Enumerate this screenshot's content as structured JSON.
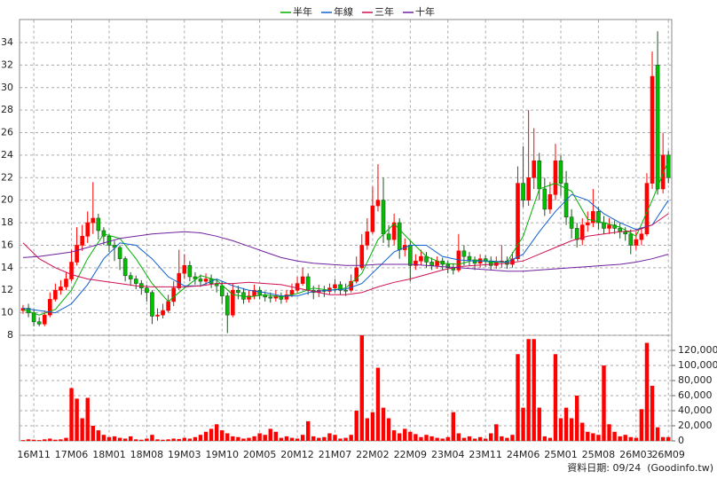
{
  "chart_data": {
    "type": "candlestick",
    "categories": [
      null,
      null,
      "16M11",
      null,
      null,
      null,
      null,
      null,
      null,
      "17M06",
      null,
      null,
      null,
      null,
      null,
      null,
      "18M01",
      null,
      null,
      null,
      null,
      null,
      null,
      "18M08",
      null,
      null,
      null,
      null,
      null,
      null,
      "19M03",
      null,
      null,
      null,
      null,
      null,
      null,
      "19M10",
      null,
      null,
      null,
      null,
      null,
      null,
      "20M05",
      null,
      null,
      null,
      null,
      null,
      null,
      "20M12",
      null,
      null,
      null,
      null,
      null,
      null,
      "21M07",
      null,
      null,
      null,
      null,
      null,
      null,
      "22M02",
      null,
      null,
      null,
      null,
      null,
      null,
      "22M09",
      null,
      null,
      null,
      null,
      null,
      null,
      "23M04",
      null,
      null,
      null,
      null,
      null,
      null,
      "23M11",
      null,
      null,
      null,
      null,
      null,
      null,
      "24M06",
      null,
      null,
      null,
      null,
      null,
      null,
      "25M01",
      null,
      null,
      null,
      null,
      null,
      null,
      "25M08",
      null,
      null,
      null,
      null,
      null,
      null,
      "26M03",
      null,
      null,
      null,
      null,
      null,
      "26M09"
    ],
    "open": [
      10.2,
      10.4,
      10.0,
      9.2,
      9.0,
      9.8,
      11.2,
      12.0,
      12.3,
      13.0,
      14.5,
      16.0,
      16.8,
      18.0,
      18.4,
      17.3,
      16.8,
      16.0,
      15.8,
      14.8,
      13.3,
      13.0,
      12.6,
      12.2,
      11.8,
      9.7,
      9.8,
      10.2,
      11.0,
      12.2,
      13.5,
      14.2,
      13.2,
      13.0,
      12.8,
      13.0,
      12.6,
      12.4,
      11.5,
      9.8,
      12.0,
      11.8,
      11.2,
      11.5,
      12.0,
      11.6,
      11.4,
      11.3,
      11.5,
      11.2,
      11.6,
      12.0,
      12.6,
      13.2,
      12.0,
      11.8,
      12.0,
      11.9,
      12.2,
      12.5,
      12.0,
      12.0,
      12.8,
      14.0,
      16.0,
      17.2,
      19.5,
      20.0,
      17.0,
      16.5,
      18.0,
      15.6,
      16.0,
      14.2,
      14.6,
      15.0,
      14.5,
      14.2,
      14.6,
      14.3,
      14.0,
      13.8,
      15.5,
      15.0,
      14.7,
      14.4,
      14.8,
      14.6,
      14.2,
      14.5,
      14.6,
      14.3,
      14.8,
      21.5,
      20.0,
      22.0,
      23.5,
      21.0,
      19.2,
      20.5,
      23.5,
      21.5,
      18.5,
      17.5,
      16.5,
      17.8,
      18.0,
      19.0,
      18.0,
      17.5,
      17.8,
      17.5,
      17.2,
      17.0,
      16.0,
      16.5,
      17.0,
      21.5,
      32.0,
      21.0,
      24.0
    ],
    "high": [
      10.7,
      10.8,
      10.3,
      9.6,
      10.2,
      11.8,
      12.6,
      12.9,
      13.6,
      15.6,
      17.6,
      17.8,
      19.0,
      21.6,
      18.8,
      17.6,
      17.0,
      16.4,
      16.0,
      15.0,
      13.6,
      13.3,
      12.9,
      12.5,
      12.0,
      10.4,
      10.8,
      11.6,
      12.8,
      15.6,
      15.2,
      14.6,
      13.6,
      13.4,
      13.5,
      13.4,
      13.0,
      12.8,
      11.8,
      12.6,
      12.4,
      12.2,
      12.0,
      12.5,
      12.3,
      11.9,
      11.8,
      12.0,
      11.8,
      12.0,
      12.6,
      13.2,
      14.0,
      13.5,
      12.4,
      12.5,
      12.4,
      12.6,
      13.0,
      12.8,
      12.6,
      13.4,
      15.0,
      17.0,
      18.4,
      21.2,
      23.2,
      22.0,
      17.8,
      18.8,
      18.4,
      16.6,
      16.4,
      15.2,
      15.6,
      15.4,
      14.9,
      15.0,
      14.9,
      14.6,
      14.4,
      17.0,
      16.0,
      15.4,
      15.0,
      15.2,
      15.1,
      15.0,
      15.0,
      16.0,
      15.0,
      15.4,
      23.0,
      24.8,
      28.0,
      26.4,
      24.2,
      22.0,
      21.6,
      25.0,
      24.0,
      22.6,
      19.2,
      18.0,
      18.4,
      19.0,
      21.0,
      19.4,
      18.6,
      18.4,
      18.2,
      18.0,
      17.6,
      17.4,
      17.2,
      17.6,
      22.4,
      33.2,
      35.0,
      26.0,
      24.4
    ],
    "low": [
      9.9,
      9.6,
      8.8,
      8.8,
      8.8,
      9.6,
      11.0,
      11.6,
      12.0,
      12.8,
      14.2,
      15.5,
      16.2,
      17.0,
      16.5,
      16.0,
      15.4,
      14.6,
      13.8,
      12.8,
      12.4,
      12.1,
      11.6,
      11.0,
      9.0,
      9.3,
      9.5,
      10.0,
      10.6,
      12.0,
      13.0,
      12.8,
      12.5,
      12.3,
      12.4,
      12.2,
      11.8,
      10.8,
      8.2,
      9.6,
      11.2,
      10.8,
      10.9,
      11.2,
      11.2,
      11.0,
      10.9,
      11.0,
      10.8,
      10.9,
      11.4,
      11.8,
      12.4,
      11.6,
      11.2,
      11.4,
      11.4,
      11.6,
      11.8,
      11.6,
      11.5,
      11.8,
      12.6,
      13.8,
      15.6,
      17.0,
      19.0,
      16.2,
      15.8,
      16.0,
      14.8,
      15.0,
      12.8,
      13.8,
      14.2,
      14.0,
      13.8,
      13.9,
      13.8,
      13.5,
      13.4,
      13.6,
      14.2,
      14.2,
      13.8,
      14.0,
      14.1,
      13.8,
      13.9,
      14.0,
      13.9,
      14.0,
      14.6,
      19.4,
      19.5,
      21.0,
      20.0,
      18.6,
      18.8,
      20.0,
      20.4,
      17.8,
      16.6,
      15.8,
      16.0,
      17.2,
      17.6,
      17.4,
      17.0,
      17.0,
      17.0,
      16.6,
      16.4,
      15.2,
      15.6,
      16.0,
      16.8,
      21.0,
      20.5,
      20.6,
      21.5
    ],
    "close": [
      10.4,
      10.0,
      9.2,
      9.0,
      9.8,
      11.2,
      12.0,
      12.3,
      13.0,
      14.5,
      16.0,
      16.8,
      18.0,
      18.4,
      17.3,
      16.8,
      16.0,
      15.8,
      14.8,
      13.3,
      13.0,
      12.6,
      12.2,
      11.8,
      9.7,
      9.8,
      10.2,
      11.0,
      12.2,
      13.5,
      14.2,
      13.2,
      13.0,
      12.8,
      13.0,
      12.6,
      12.4,
      11.5,
      9.8,
      12.0,
      11.8,
      11.2,
      11.5,
      12.0,
      11.6,
      11.4,
      11.3,
      11.5,
      11.2,
      11.6,
      12.0,
      12.6,
      13.2,
      12.0,
      11.8,
      12.0,
      11.9,
      12.2,
      12.5,
      12.0,
      12.0,
      12.8,
      14.0,
      16.0,
      17.2,
      19.5,
      20.0,
      17.0,
      16.5,
      18.0,
      15.6,
      16.0,
      14.2,
      14.6,
      15.0,
      14.5,
      14.2,
      14.6,
      14.3,
      14.0,
      13.8,
      15.5,
      15.0,
      14.7,
      14.4,
      14.8,
      14.6,
      14.2,
      14.5,
      14.6,
      14.3,
      14.8,
      21.5,
      20.0,
      22.0,
      23.5,
      21.0,
      19.2,
      20.5,
      23.5,
      21.5,
      18.5,
      17.5,
      16.5,
      17.8,
      18.0,
      19.0,
      18.0,
      17.5,
      17.8,
      17.5,
      17.2,
      17.0,
      16.0,
      16.5,
      17.0,
      21.5,
      31.0,
      21.0,
      24.0,
      22.0
    ],
    "up_color": "#ff0000",
    "down_color": "#00c000",
    "ylim": [
      8,
      36
    ],
    "yticks": [
      8,
      10,
      12,
      14,
      16,
      18,
      20,
      22,
      24,
      26,
      28,
      30,
      32,
      34
    ],
    "grid": true,
    "volume": {
      "color": "#ff0000",
      "values": [
        1000,
        2000,
        1500,
        1000,
        2000,
        3000,
        1500,
        2000,
        4000,
        70000,
        56000,
        30000,
        57000,
        20000,
        14000,
        8000,
        5000,
        6000,
        4000,
        3000,
        6000,
        2000,
        1500,
        3000,
        8000,
        2000,
        1500,
        2000,
        3000,
        2500,
        4000,
        3000,
        5000,
        8000,
        12000,
        16000,
        22000,
        14000,
        10000,
        6000,
        5000,
        3000,
        4000,
        6000,
        10000,
        8000,
        16000,
        12000,
        4000,
        6000,
        4000,
        3000,
        8000,
        26000,
        6000,
        4000,
        5000,
        10000,
        8000,
        3000,
        4000,
        8000,
        40000,
        140000,
        30000,
        38000,
        97000,
        44000,
        30000,
        14000,
        10000,
        16000,
        12000,
        9000,
        5000,
        8000,
        6000,
        4000,
        3000,
        5000,
        38000,
        10000,
        4000,
        6000,
        3000,
        5000,
        3000,
        10000,
        22000,
        6000,
        4000,
        8000,
        115000,
        44000,
        135000,
        135000,
        44000,
        6000,
        4000,
        115000,
        30000,
        44000,
        30000,
        60000,
        24000,
        12000,
        10000,
        8000,
        100000,
        22000,
        12000,
        6000,
        8000,
        5000,
        4000,
        42000,
        130000,
        73000,
        18000,
        5000,
        5000
      ],
      "ylim": [
        0,
        140000
      ],
      "yticks": [
        0,
        {
          "value": 20000,
          "label": "20,000"
        },
        {
          "value": 40000,
          "label": "40,000"
        },
        {
          "value": 60000,
          "label": "60,000"
        },
        {
          "value": 80000,
          "label": "80,000"
        },
        {
          "value": 100000,
          "label": "100,000"
        },
        {
          "value": 120000,
          "label": "120,000"
        }
      ]
    },
    "lines": [
      {
        "name": "半年",
        "color": "#00b000",
        "x": [
          0,
          3,
          6,
          9,
          12,
          15,
          18,
          21,
          24,
          27,
          30,
          33,
          36,
          39,
          42,
          45,
          48,
          51,
          54,
          57,
          60,
          63,
          66,
          69,
          72,
          75,
          78,
          81,
          84,
          87,
          90,
          93,
          96,
          99,
          102,
          105,
          108,
          111,
          114,
          117,
          120
        ],
        "values": [
          10.3,
          9.8,
          10.3,
          12.0,
          14.8,
          17.0,
          16.6,
          14.8,
          12.6,
          11.0,
          12.2,
          13.3,
          12.9,
          11.6,
          11.4,
          11.6,
          11.4,
          11.7,
          12.2,
          12.0,
          12.2,
          13.5,
          16.5,
          17.9,
          16.4,
          15.0,
          14.4,
          14.3,
          14.7,
          14.5,
          14.5,
          16.8,
          21.0,
          21.5,
          20.8,
          18.3,
          18.0,
          17.6,
          16.8,
          20.0,
          23.5
        ]
      },
      {
        "name": "年線",
        "color": "#1060d0",
        "x": [
          0,
          3,
          6,
          9,
          12,
          15,
          18,
          21,
          24,
          27,
          30,
          33,
          36,
          39,
          42,
          45,
          48,
          51,
          54,
          57,
          60,
          63,
          66,
          69,
          72,
          75,
          78,
          81,
          84,
          87,
          90,
          93,
          96,
          99,
          102,
          105,
          108,
          111,
          114,
          117,
          120
        ],
        "values": [
          10.4,
          10.2,
          10.0,
          10.8,
          12.5,
          14.8,
          16.2,
          16.0,
          14.8,
          13.2,
          12.4,
          12.4,
          13.0,
          12.4,
          12.0,
          11.8,
          11.5,
          11.5,
          11.9,
          12.0,
          12.1,
          12.6,
          14.0,
          15.4,
          16.0,
          16.0,
          15.0,
          14.7,
          14.6,
          14.6,
          14.5,
          15.2,
          17.2,
          19.0,
          20.5,
          20.0,
          18.8,
          18.0,
          17.4,
          17.8,
          20.0
        ]
      },
      {
        "name": "三年",
        "color": "#d01050",
        "x": [
          0,
          3,
          6,
          9,
          12,
          15,
          18,
          21,
          24,
          27,
          30,
          33,
          36,
          39,
          42,
          45,
          48,
          51,
          54,
          57,
          60,
          63,
          66,
          69,
          72,
          75,
          78,
          81,
          84,
          87,
          90,
          93,
          96,
          99,
          102,
          105,
          108,
          111,
          114,
          117,
          120
        ],
        "values": [
          16.2,
          14.8,
          14.0,
          13.4,
          13.0,
          12.8,
          12.6,
          12.4,
          12.3,
          12.3,
          12.3,
          12.4,
          12.6,
          12.6,
          12.7,
          12.6,
          12.5,
          12.2,
          11.9,
          11.6,
          11.6,
          11.8,
          12.3,
          12.7,
          13.0,
          13.4,
          13.8,
          14.1,
          14.2,
          14.3,
          14.4,
          14.6,
          15.2,
          15.8,
          16.4,
          16.8,
          17.0,
          17.2,
          17.3,
          17.8,
          18.8
        ]
      },
      {
        "name": "十年",
        "color": "#7020a0",
        "x": [
          0,
          3,
          6,
          9,
          12,
          15,
          18,
          21,
          24,
          27,
          30,
          33,
          36,
          39,
          42,
          45,
          48,
          51,
          54,
          57,
          60,
          63,
          66,
          69,
          72,
          75,
          78,
          81,
          84,
          87,
          90,
          93,
          96,
          99,
          102,
          105,
          108,
          111,
          114,
          117,
          120
        ],
        "values": [
          14.9,
          15.0,
          15.2,
          15.4,
          15.8,
          16.2,
          16.6,
          16.8,
          17.0,
          17.1,
          17.2,
          17.1,
          16.8,
          16.4,
          15.9,
          15.4,
          14.9,
          14.6,
          14.4,
          14.3,
          14.2,
          14.2,
          14.3,
          14.3,
          14.3,
          14.2,
          14.1,
          14.0,
          13.9,
          13.8,
          13.7,
          13.7,
          13.8,
          13.9,
          14.0,
          14.1,
          14.2,
          14.3,
          14.5,
          14.8,
          15.2
        ]
      }
    ],
    "footer": "資料日期: 09/24  (Goodinfo.tw)"
  }
}
